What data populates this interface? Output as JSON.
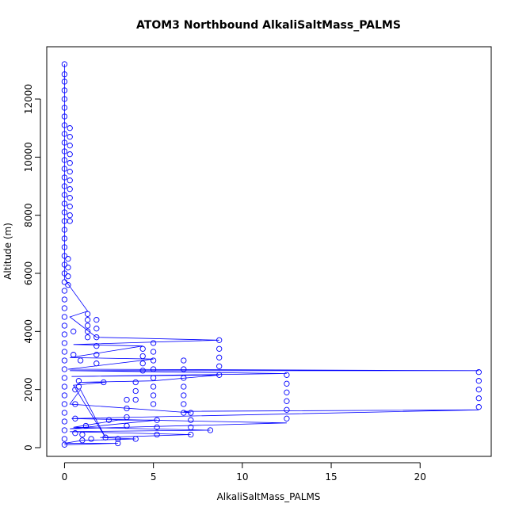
{
  "chart_data": {
    "type": "scatter",
    "title": "ATOM3 Northbound AlkaliSaltMass_PALMS",
    "xlabel": "AlkaliSaltMass_PALMS",
    "ylabel": "Altitude (m)",
    "xlim": [
      -1,
      24
    ],
    "ylim": [
      -300,
      13800
    ],
    "xticks": [
      0,
      5,
      10,
      15,
      20
    ],
    "yticks": [
      0,
      2000,
      4000,
      6000,
      8000,
      10000,
      12000
    ],
    "grid": false,
    "legend": "none",
    "colors": {
      "series": "#0000ff",
      "axis": "#000000"
    },
    "series": [
      {
        "points": [
          [
            0,
            13200
          ],
          [
            0,
            12850
          ],
          [
            0,
            12600
          ],
          [
            0,
            12300
          ],
          [
            0,
            12000
          ],
          [
            0,
            11700
          ],
          [
            0,
            11400
          ],
          [
            0,
            11100
          ],
          [
            0,
            10800
          ],
          [
            0,
            10500
          ],
          [
            0,
            10200
          ],
          [
            0,
            9900
          ],
          [
            0,
            9600
          ],
          [
            0,
            9300
          ],
          [
            0,
            9000
          ],
          [
            0,
            8700
          ],
          [
            0,
            8400
          ],
          [
            0,
            8100
          ],
          [
            0,
            7800
          ],
          [
            0,
            7500
          ],
          [
            0,
            7200
          ],
          [
            0,
            6900
          ],
          [
            0,
            6600
          ],
          [
            0,
            6300
          ],
          [
            0,
            6000
          ],
          [
            0,
            5700
          ],
          [
            0,
            5400
          ],
          [
            0,
            5100
          ],
          [
            0,
            4800
          ],
          [
            0,
            4500
          ],
          [
            0,
            4200
          ],
          [
            0,
            3900
          ],
          [
            0,
            3600
          ],
          [
            0,
            3300
          ],
          [
            0,
            3000
          ],
          [
            0,
            2700
          ],
          [
            0,
            2400
          ],
          [
            0,
            2100
          ],
          [
            0,
            1800
          ],
          [
            0,
            1500
          ],
          [
            0,
            1200
          ],
          [
            0,
            900
          ],
          [
            0,
            600
          ],
          [
            0,
            300
          ],
          [
            0,
            100
          ],
          [
            0.3,
            11000
          ],
          [
            0.3,
            10700
          ],
          [
            0.3,
            10400
          ],
          [
            0.3,
            10100
          ],
          [
            0.3,
            9800
          ],
          [
            0.3,
            9500
          ],
          [
            0.3,
            9200
          ],
          [
            0.3,
            8900
          ],
          [
            0.3,
            8600
          ],
          [
            0.3,
            8300
          ],
          [
            0.3,
            8000
          ],
          [
            0.3,
            7800
          ],
          [
            0.2,
            6500
          ],
          [
            0.2,
            6200
          ],
          [
            0.2,
            5900
          ],
          [
            0.2,
            5600
          ],
          [
            1.3,
            4600
          ],
          [
            1.3,
            4400
          ],
          [
            1.3,
            4200
          ],
          [
            1.3,
            4000
          ],
          [
            1.3,
            3800
          ],
          [
            1.8,
            4400
          ],
          [
            1.8,
            4100
          ],
          [
            1.8,
            3800
          ],
          [
            1.8,
            3500
          ],
          [
            1.8,
            3200
          ],
          [
            1.8,
            2900
          ],
          [
            4.4,
            3400
          ],
          [
            4.4,
            3150
          ],
          [
            4.4,
            2900
          ],
          [
            4.4,
            2650
          ],
          [
            5.0,
            3600
          ],
          [
            5.0,
            3300
          ],
          [
            5.0,
            3000
          ],
          [
            5.0,
            2700
          ],
          [
            5.0,
            2400
          ],
          [
            5.0,
            2100
          ],
          [
            5.0,
            1800
          ],
          [
            5.0,
            1500
          ],
          [
            6.7,
            3000
          ],
          [
            6.7,
            2700
          ],
          [
            6.7,
            2400
          ],
          [
            6.7,
            2100
          ],
          [
            6.7,
            1800
          ],
          [
            6.7,
            1500
          ],
          [
            6.7,
            1200
          ],
          [
            8.7,
            3700
          ],
          [
            8.7,
            3400
          ],
          [
            8.7,
            3100
          ],
          [
            8.7,
            2800
          ],
          [
            8.7,
            2500
          ],
          [
            12.5,
            2500
          ],
          [
            12.5,
            2200
          ],
          [
            12.5,
            1900
          ],
          [
            12.5,
            1600
          ],
          [
            12.5,
            1300
          ],
          [
            12.5,
            1000
          ],
          [
            23.3,
            2600
          ],
          [
            23.3,
            2300
          ],
          [
            23.3,
            2000
          ],
          [
            23.3,
            1700
          ],
          [
            23.3,
            1400
          ],
          [
            3.5,
            1650
          ],
          [
            3.5,
            1350
          ],
          [
            3.5,
            1050
          ],
          [
            3.5,
            750
          ],
          [
            4.0,
            2250
          ],
          [
            4.0,
            1950
          ],
          [
            4.0,
            1650
          ],
          [
            2.2,
            2250
          ],
          [
            2.5,
            950
          ],
          [
            7.1,
            1200
          ],
          [
            7.1,
            950
          ],
          [
            7.1,
            700
          ],
          [
            7.1,
            450
          ],
          [
            8.2,
            600
          ],
          [
            5.2,
            950
          ],
          [
            5.2,
            700
          ],
          [
            5.2,
            450
          ],
          [
            0.8,
            2300
          ],
          [
            0.8,
            2100
          ],
          [
            0.9,
            3000
          ],
          [
            0.6,
            2000
          ],
          [
            0.6,
            1500
          ],
          [
            0.6,
            1000
          ],
          [
            0.6,
            500
          ],
          [
            1.2,
            750
          ],
          [
            1.0,
            450
          ],
          [
            1.0,
            250
          ],
          [
            2.3,
            350
          ],
          [
            3.0,
            300
          ],
          [
            3.0,
            150
          ],
          [
            4.0,
            300
          ],
          [
            1.5,
            300
          ],
          [
            0.5,
            3200
          ],
          [
            0.5,
            4000
          ]
        ],
        "path": [
          [
            0,
            13200
          ],
          [
            0,
            11000
          ],
          [
            0,
            9000
          ],
          [
            0,
            7000
          ],
          [
            0,
            5800
          ],
          [
            1.3,
            4700
          ],
          [
            0.3,
            4500
          ],
          [
            1.8,
            3800
          ],
          [
            8.7,
            3700
          ],
          [
            0.5,
            3550
          ],
          [
            4.4,
            3500
          ],
          [
            0.3,
            3100
          ],
          [
            5.0,
            3050
          ],
          [
            0.2,
            2700
          ],
          [
            23.3,
            2650
          ],
          [
            0.3,
            2650
          ],
          [
            12.5,
            2550
          ],
          [
            0.4,
            2450
          ],
          [
            8.7,
            2500
          ],
          [
            5.0,
            2300
          ],
          [
            0.8,
            2250
          ],
          [
            2.3,
            2250
          ],
          [
            0.5,
            2150
          ],
          [
            2.3,
            350
          ],
          [
            0.9,
            2000
          ],
          [
            0.3,
            1500
          ],
          [
            7.1,
            1200
          ],
          [
            6.7,
            1250
          ],
          [
            23.3,
            1300
          ],
          [
            0.4,
            1000
          ],
          [
            12.5,
            850
          ],
          [
            0.3,
            650
          ],
          [
            5.2,
            950
          ],
          [
            3.0,
            950
          ],
          [
            0.5,
            700
          ],
          [
            8.2,
            600
          ],
          [
            0.3,
            550
          ],
          [
            7.1,
            450
          ],
          [
            2.0,
            350
          ],
          [
            4.0,
            300
          ],
          [
            1.0,
            250
          ],
          [
            0,
            150
          ],
          [
            3.0,
            150
          ],
          [
            0,
            100
          ]
        ]
      }
    ]
  }
}
